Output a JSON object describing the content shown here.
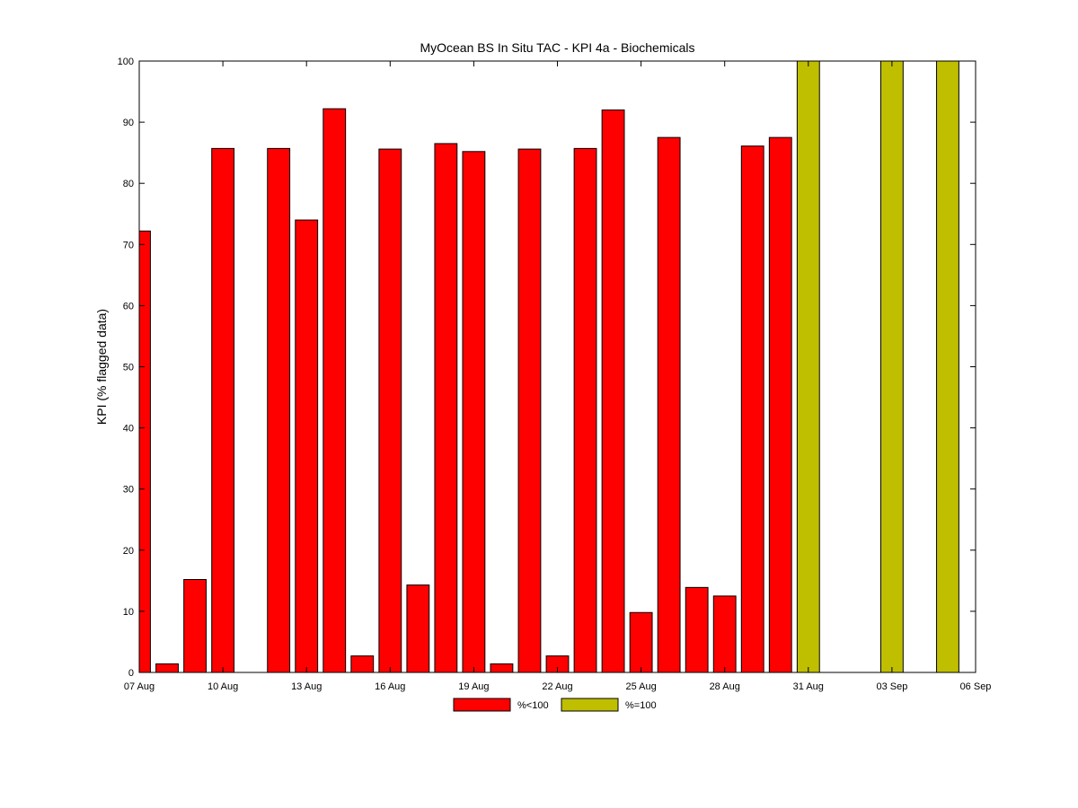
{
  "chart_data": {
    "type": "bar",
    "title": "MyOcean  BS In Situ TAC - KPI 4a - Biochemicals",
    "xlabel": "",
    "ylabel": "KPI (% flagged data)",
    "ylim": [
      0,
      100
    ],
    "yticks": [
      0,
      10,
      20,
      30,
      40,
      50,
      60,
      70,
      80,
      90,
      100
    ],
    "xticks": [
      "07 Aug",
      "10 Aug",
      "13 Aug",
      "16 Aug",
      "19 Aug",
      "22 Aug",
      "25 Aug",
      "28 Aug",
      "31 Aug",
      "03 Sep",
      "06 Sep"
    ],
    "legend_position": "bottom",
    "grid": false,
    "series": [
      {
        "name": "%<100",
        "color": "#ff0000",
        "points": [
          {
            "date": "07 Aug",
            "value": 72.2
          },
          {
            "date": "08 Aug",
            "value": 1.4
          },
          {
            "date": "09 Aug",
            "value": 15.2
          },
          {
            "date": "10 Aug",
            "value": 85.7
          },
          {
            "date": "12 Aug",
            "value": 85.7
          },
          {
            "date": "13 Aug",
            "value": 74.0
          },
          {
            "date": "14 Aug",
            "value": 92.2
          },
          {
            "date": "15 Aug",
            "value": 2.7
          },
          {
            "date": "16 Aug",
            "value": 85.6
          },
          {
            "date": "17 Aug",
            "value": 14.3
          },
          {
            "date": "18 Aug",
            "value": 86.5
          },
          {
            "date": "19 Aug",
            "value": 85.2
          },
          {
            "date": "20 Aug",
            "value": 1.4
          },
          {
            "date": "21 Aug",
            "value": 85.6
          },
          {
            "date": "22 Aug",
            "value": 2.7
          },
          {
            "date": "23 Aug",
            "value": 85.7
          },
          {
            "date": "24 Aug",
            "value": 92.0
          },
          {
            "date": "25 Aug",
            "value": 9.8
          },
          {
            "date": "26 Aug",
            "value": 87.5
          },
          {
            "date": "27 Aug",
            "value": 13.9
          },
          {
            "date": "28 Aug",
            "value": 12.5
          },
          {
            "date": "29 Aug",
            "value": 86.1
          },
          {
            "date": "30 Aug",
            "value": 87.5
          }
        ]
      },
      {
        "name": "%=100",
        "color": "#bfbf00",
        "points": [
          {
            "date": "31 Aug",
            "value": 100
          },
          {
            "date": "03 Sep",
            "value": 100
          },
          {
            "date": "05 Sep",
            "value": 100
          }
        ]
      }
    ]
  }
}
